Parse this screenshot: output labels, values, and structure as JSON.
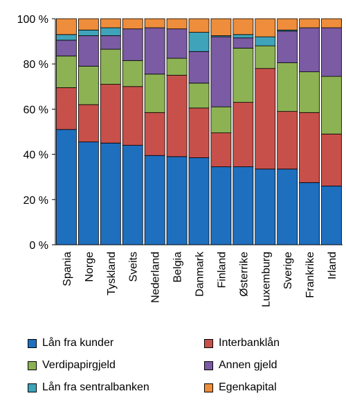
{
  "chart_data": {
    "type": "bar",
    "stacked": true,
    "categories": [
      "Spania",
      "Norge",
      "Tyskland",
      "Sveits",
      "Nederland",
      "Belgia",
      "Danmark",
      "Finland",
      "Østerrike",
      "Luxemburg",
      "Sverige",
      "Frankrike",
      "Irland"
    ],
    "series": [
      {
        "name": "Lån fra kunder",
        "color": "#1f6fbf",
        "values": [
          51,
          45.5,
          45,
          44,
          39.5,
          39,
          38.5,
          34.5,
          34.5,
          33.5,
          33.5,
          27.5,
          26
        ]
      },
      {
        "name": "Interbanklån",
        "color": "#c8504b",
        "values": [
          18.5,
          16.5,
          26,
          26,
          19,
          36,
          22,
          15,
          28.5,
          44.5,
          25.5,
          31,
          23
        ]
      },
      {
        "name": "Verdipapirgjeld",
        "color": "#8db254",
        "values": [
          14,
          17,
          15.5,
          11.5,
          17,
          7.5,
          11,
          11.5,
          24,
          10,
          21.5,
          18,
          25.5
        ]
      },
      {
        "name": "Annen gjeld",
        "color": "#7b5ba3",
        "values": [
          7,
          13.5,
          6,
          14,
          20.5,
          13,
          14,
          31,
          4.5,
          0,
          14,
          19.5,
          21.5
        ]
      },
      {
        "name": "Lån fra sentralbanken",
        "color": "#3fa3ba",
        "values": [
          2.5,
          2.5,
          3.5,
          0,
          0,
          0,
          8.5,
          0.5,
          1.5,
          4,
          0.5,
          0,
          0
        ]
      },
      {
        "name": "Egenkapital",
        "color": "#ee8d3b",
        "values": [
          7,
          5,
          4,
          4.5,
          4,
          4.5,
          6,
          7.5,
          7,
          8,
          5,
          4,
          4
        ]
      }
    ],
    "ylim": [
      0,
      100
    ],
    "yticks": [
      "0 %",
      "20 %",
      "40 %",
      "60 %",
      "80 %",
      "100 %"
    ],
    "ytick_values": [
      0,
      20,
      40,
      60,
      80,
      100
    ],
    "legend_position": "bottom",
    "grid": false
  }
}
